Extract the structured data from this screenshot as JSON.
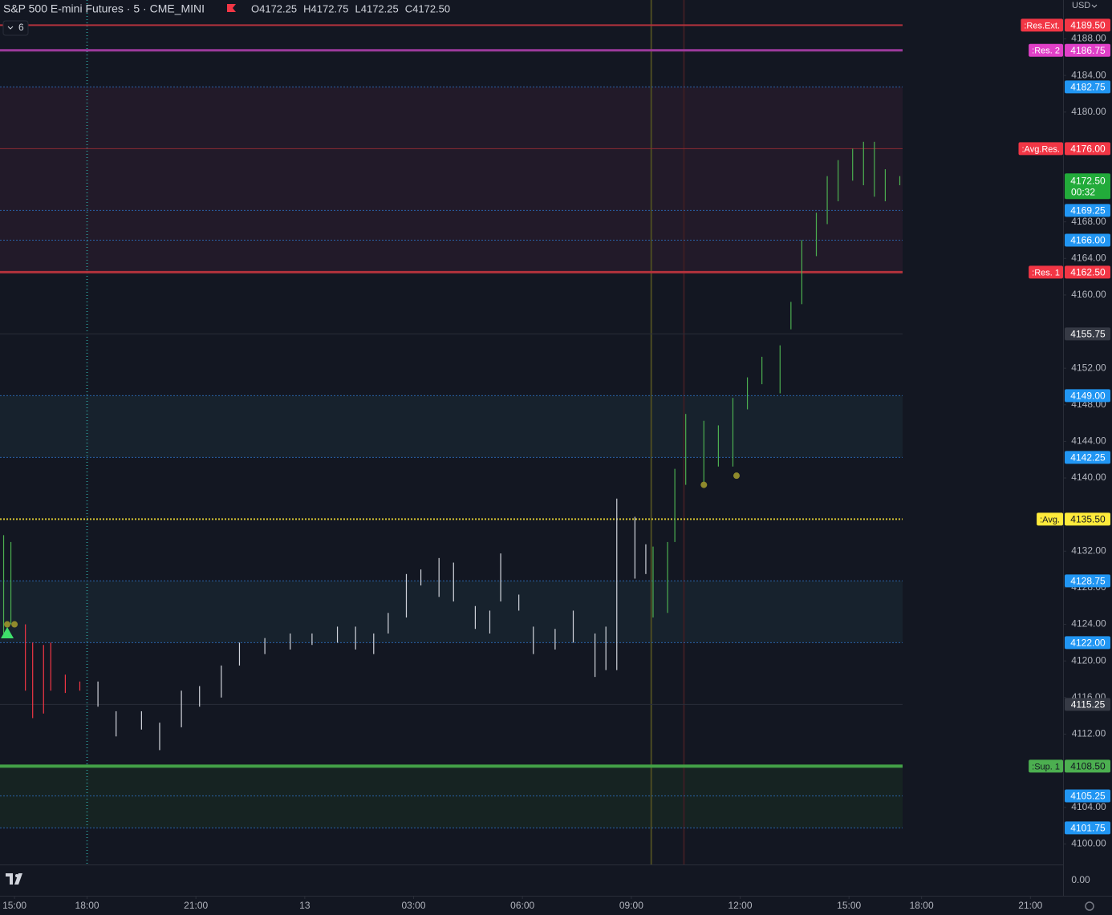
{
  "chart_data": {
    "type": "ohlc",
    "title": "S&P 500 E-mini Futures · 5 · CME_MINI",
    "ohlc_texts": [
      "O4172.25",
      "H4172.75",
      "L4172.25",
      "C4172.50"
    ],
    "indicator_count": "6",
    "currency": "USD",
    "lower_pane_label": "0.00",
    "ylim": [
      4097.75,
      4192.25
    ],
    "xlim": [
      -0.4,
      28.9
    ],
    "yticks": [
      {
        "value": 4188,
        "label": "4188.00"
      },
      {
        "value": 4184,
        "label": "4184.00"
      },
      {
        "value": 4180,
        "label": "4180.00"
      },
      {
        "value": 4168,
        "label": "4168.00"
      },
      {
        "value": 4164,
        "label": "4164.00"
      },
      {
        "value": 4160,
        "label": "4160.00"
      },
      {
        "value": 4152,
        "label": "4152.00"
      },
      {
        "value": 4148,
        "label": "4148.00"
      },
      {
        "value": 4144,
        "label": "4144.00"
      },
      {
        "value": 4140,
        "label": "4140.00"
      },
      {
        "value": 4132,
        "label": "4132.00"
      },
      {
        "value": 4128,
        "label": "4128.00"
      },
      {
        "value": 4124,
        "label": "4124.00"
      },
      {
        "value": 4120,
        "label": "4120.00"
      },
      {
        "value": 4116,
        "label": "4116.00"
      },
      {
        "value": 4112,
        "label": "4112.00"
      },
      {
        "value": 4104,
        "label": "4104.00"
      },
      {
        "value": 4100,
        "label": "4100.00"
      }
    ],
    "xticks": [
      {
        "value": 0,
        "label": "15:00"
      },
      {
        "value": 2,
        "label": "18:00"
      },
      {
        "value": 5,
        "label": "21:00"
      },
      {
        "value": 8,
        "label": "13"
      },
      {
        "value": 11,
        "label": "03:00"
      },
      {
        "value": 14,
        "label": "06:00"
      },
      {
        "value": 17,
        "label": "09:00"
      },
      {
        "value": 20,
        "label": "12:00"
      },
      {
        "value": 23,
        "label": "15:00"
      },
      {
        "value": 25,
        "label": "18:00"
      },
      {
        "value": 28,
        "label": "21:00"
      }
    ],
    "series": [
      {
        "color": "#4caf50",
        "x": [
          -0.3,
          -0.1
        ],
        "high": [
          4133.75,
          4133.0
        ],
        "low": [
          4123.0,
          4124.0
        ]
      },
      {
        "color": "#f23645",
        "x": [
          0.3,
          0.5,
          0.8,
          1.0,
          1.4,
          1.8
        ],
        "high": [
          4124.0,
          4122.0,
          4121.75,
          4122.0,
          4118.5,
          4117.75
        ],
        "low": [
          4116.75,
          4113.75,
          4114.25,
          4116.75,
          4116.5,
          4116.75
        ]
      },
      {
        "color": "#d1d4dc",
        "x": [
          2.3,
          2.8,
          3.5,
          4.0,
          4.6,
          5.1,
          5.7,
          6.2,
          6.9,
          7.6,
          8.2,
          8.9,
          9.4,
          9.9,
          10.3,
          10.8,
          11.2,
          11.7,
          12.1,
          12.7,
          13.1,
          13.4,
          13.9,
          14.3,
          14.9,
          15.4,
          16.0,
          16.3,
          16.6,
          17.1,
          17.4
        ],
        "high": [
          4117.75,
          4114.5,
          4114.5,
          4113.25,
          4116.75,
          4117.25,
          4119.5,
          4122.0,
          4122.5,
          4123.0,
          4123.0,
          4123.75,
          4123.75,
          4123.0,
          4125.25,
          4129.5,
          4130.0,
          4131.25,
          4130.75,
          4126.0,
          4125.5,
          4131.75,
          4127.25,
          4123.75,
          4123.5,
          4125.5,
          4123.0,
          4123.75,
          4137.75,
          4135.75,
          4132.75
        ],
        "low": [
          4115.0,
          4111.75,
          4112.5,
          4110.25,
          4112.75,
          4115.0,
          4116.0,
          4119.5,
          4120.75,
          4121.25,
          4121.75,
          4122.0,
          4121.25,
          4120.75,
          4123.0,
          4124.75,
          4128.25,
          4127.0,
          4126.5,
          4123.5,
          4123.0,
          4126.5,
          4125.5,
          4120.75,
          4121.25,
          4122.0,
          4118.25,
          4119.0,
          4119.0,
          4129.0,
          4129.5
        ]
      },
      {
        "color": "#4caf50",
        "x": [
          17.6,
          18.0,
          18.2,
          18.5,
          19.0,
          19.4,
          19.8,
          20.2,
          20.6,
          21.1,
          21.4,
          21.7,
          22.1,
          22.4,
          22.7,
          23.1,
          23.4,
          23.7,
          24.0,
          24.4
        ],
        "high": [
          4132.5,
          4133.0,
          4141.0,
          4147.0,
          4146.25,
          4145.75,
          4148.75,
          4151.0,
          4153.25,
          4154.5,
          4159.25,
          4166.0,
          4169.0,
          4173.0,
          4174.75,
          4176.0,
          4176.75,
          4176.75,
          4173.75,
          4173.0
        ],
        "low": [
          4124.75,
          4125.25,
          4133.0,
          4139.25,
          4139.5,
          4141.25,
          4141.25,
          4147.5,
          4150.25,
          4149.25,
          4156.25,
          4159.0,
          4164.25,
          4167.75,
          4170.25,
          4172.5,
          4172.0,
          4170.75,
          4170.25,
          4172.0
        ]
      }
    ],
    "zones": [
      {
        "from": 4182.75,
        "to": 4162.5,
        "color": "#221a29"
      },
      {
        "from": 4149.0,
        "to": 4142.25,
        "color": "#17222d"
      },
      {
        "from": 4128.75,
        "to": 4122.0,
        "color": "#17222d"
      },
      {
        "from": 4108.5,
        "to": 4101.75,
        "color": "#162322"
      }
    ],
    "levels": [
      {
        "name": ":Res.Ext.",
        "value": 4189.5,
        "value_label": "4189.50",
        "color": "#b2323c",
        "label_color": "#f23645",
        "width": 2,
        "dash": "none"
      },
      {
        "name": ":Res. 2",
        "value": 4186.75,
        "value_label": "4186.75",
        "color": "#9c3a9c",
        "label_color": "#e040c8",
        "width": 3,
        "dash": "none"
      },
      {
        "value": 4182.75,
        "value_label": "4182.75",
        "color": "#2962a8",
        "label_color": "#2196f3",
        "width": 1,
        "dash": "2 2"
      },
      {
        "name": ":Avg.Res.",
        "value": 4176.0,
        "value_label": "4176.00",
        "color": "#8c2a33",
        "label_color": "#f23645",
        "width": 1,
        "dash": "none"
      },
      {
        "value": 4169.25,
        "value_label": "4169.25",
        "color": "#2962a8",
        "label_color": "#2196f3",
        "width": 1,
        "dash": "2 2"
      },
      {
        "value": 4166.0,
        "value_label": "4166.00",
        "color": "#2962a8",
        "label_color": "#2196f3",
        "width": 1,
        "dash": "2 2"
      },
      {
        "name": ":Res. 1",
        "value": 4162.5,
        "value_label": "4162.50",
        "color": "#b2323c",
        "label_color": "#f23645",
        "width": 3,
        "dash": "none"
      },
      {
        "value": 4155.75,
        "value_label": "4155.75",
        "color": "#2a2e39",
        "label_color": "#363a45",
        "width": 1,
        "dash": "none"
      },
      {
        "value": 4149.0,
        "value_label": "4149.00",
        "color": "#2962a8",
        "label_color": "#2196f3",
        "width": 1,
        "dash": "2 2"
      },
      {
        "value": 4142.25,
        "value_label": "4142.25",
        "color": "#2962a8",
        "label_color": "#2196f3",
        "width": 1,
        "dash": "2 2"
      },
      {
        "name": ":Avg.",
        "value": 4135.5,
        "value_label": "4135.50",
        "color": "#d6c431",
        "label_color": "#ffeb3b",
        "width": 2,
        "dash": "2 2"
      },
      {
        "value": 4128.75,
        "value_label": "4128.75",
        "color": "#2962a8",
        "label_color": "#2196f3",
        "width": 1,
        "dash": "2 2"
      },
      {
        "value": 4122.0,
        "value_label": "4122.00",
        "color": "#2962a8",
        "label_color": "#2196f3",
        "width": 1,
        "dash": "2 2"
      },
      {
        "value": 4115.25,
        "value_label": "4115.25",
        "color": "#2a2e39",
        "label_color": "#363a45",
        "width": 1,
        "dash": "none"
      },
      {
        "name": ":Sup. 1",
        "value": 4108.5,
        "value_label": "4108.50",
        "color": "#43a047",
        "label_color": "#4caf50",
        "width": 4,
        "dash": "none"
      },
      {
        "value": 4105.25,
        "value_label": "4105.25",
        "color": "#2962a8",
        "label_color": "#2196f3",
        "width": 1,
        "dash": "2 2"
      },
      {
        "value": 4101.75,
        "value_label": "4101.75",
        "color": "#2962a8",
        "label_color": "#2196f3",
        "width": 1,
        "dash": "2 2"
      }
    ],
    "last_price": {
      "value": 4172.5,
      "value_label": "4172.50",
      "countdown": "00:32",
      "color": "#22ab3a"
    },
    "vlines": [
      {
        "x": 2,
        "color": "#2a8a8a",
        "dash": "1 3"
      },
      {
        "x": 17.55,
        "color": "#4a4a22",
        "dash": "none"
      },
      {
        "x": 18.45,
        "color": "#3b1e24",
        "dash": "none"
      }
    ],
    "signals": [
      {
        "x": -0.2,
        "y": 4124.0,
        "shape": "dot",
        "color": "#8f8a2c"
      },
      {
        "x": 0.0,
        "y": 4124.0,
        "shape": "dot",
        "color": "#8f8a2c"
      },
      {
        "x": 19.0,
        "y": 4139.25,
        "shape": "dot",
        "color": "#8f8a2c"
      },
      {
        "x": 19.9,
        "y": 4140.25,
        "shape": "dot",
        "color": "#8f8a2c"
      },
      {
        "x": -0.2,
        "y": 4123.0,
        "shape": "triangle",
        "color": "#3ee06b"
      }
    ]
  }
}
